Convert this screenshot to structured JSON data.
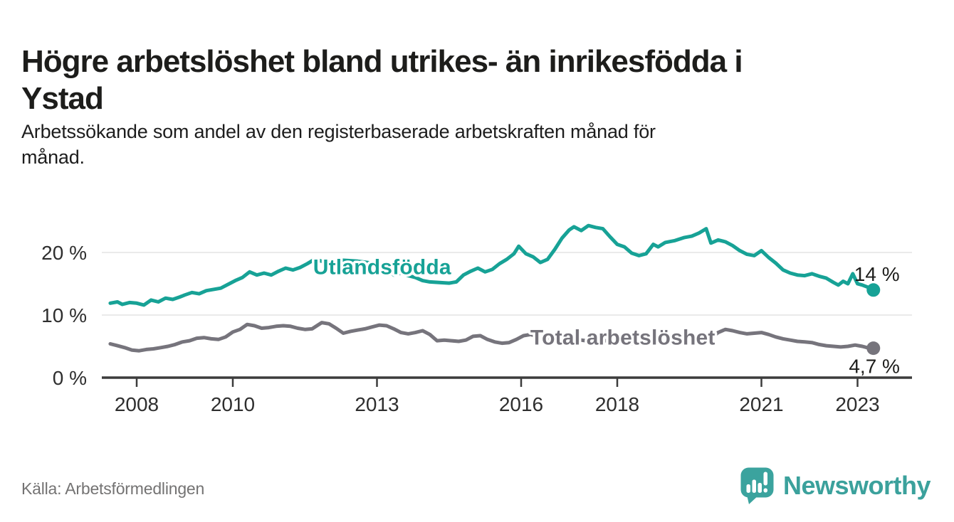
{
  "header": {
    "title_lines": [
      "Högre arbetslöshet bland utrikes- än inrikesfödda i",
      "Ystad"
    ],
    "subtitle_lines": [
      "Arbetssökande som andel av den registerbaserade arbetskraften månad för",
      "månad."
    ]
  },
  "chart_data": {
    "type": "line",
    "x_unit": "decimal_year",
    "xlim": [
      2007.45,
      2023.6
    ],
    "ylim": [
      0,
      25
    ],
    "grid": "horizontal",
    "legend_position": "inline-labels",
    "x_ticks": [
      {
        "x": 2008,
        "label": "2008"
      },
      {
        "x": 2010,
        "label": "2010"
      },
      {
        "x": 2013,
        "label": "2013"
      },
      {
        "x": 2016,
        "label": "2016"
      },
      {
        "x": 2018,
        "label": "2018"
      },
      {
        "x": 2021,
        "label": "2021"
      },
      {
        "x": 2023,
        "label": "2023"
      }
    ],
    "y_ticks": [
      {
        "v": 0,
        "label": "0 %"
      },
      {
        "v": 10,
        "label": "10 %"
      },
      {
        "v": 20,
        "label": "20 %"
      }
    ],
    "series": [
      {
        "name": "Utlandsfödda",
        "color": "#17a296",
        "end_dot": true,
        "end_value_label": "14 %",
        "points": [
          [
            2007.45,
            11.9
          ],
          [
            2007.6,
            12.1
          ],
          [
            2007.7,
            11.7
          ],
          [
            2007.85,
            12.0
          ],
          [
            2008.0,
            11.9
          ],
          [
            2008.15,
            11.6
          ],
          [
            2008.3,
            12.4
          ],
          [
            2008.45,
            12.1
          ],
          [
            2008.6,
            12.7
          ],
          [
            2008.75,
            12.5
          ],
          [
            2008.9,
            12.9
          ],
          [
            2009.0,
            13.2
          ],
          [
            2009.15,
            13.6
          ],
          [
            2009.3,
            13.4
          ],
          [
            2009.45,
            13.9
          ],
          [
            2009.6,
            14.1
          ],
          [
            2009.75,
            14.3
          ],
          [
            2009.9,
            14.9
          ],
          [
            2010.05,
            15.5
          ],
          [
            2010.2,
            16.0
          ],
          [
            2010.35,
            16.9
          ],
          [
            2010.5,
            16.4
          ],
          [
            2010.65,
            16.7
          ],
          [
            2010.8,
            16.4
          ],
          [
            2010.95,
            17.0
          ],
          [
            2011.1,
            17.5
          ],
          [
            2011.25,
            17.2
          ],
          [
            2011.4,
            17.6
          ],
          [
            2011.55,
            18.2
          ],
          [
            2011.7,
            18.9
          ],
          [
            2011.85,
            18.6
          ],
          [
            2012.0,
            18.7
          ],
          [
            2012.2,
            18.8
          ],
          [
            2012.4,
            18.7
          ],
          [
            2012.6,
            18.6
          ],
          [
            2012.8,
            18.4
          ],
          [
            2013.0,
            18.1
          ],
          [
            2013.2,
            17.8
          ],
          [
            2013.35,
            16.4
          ],
          [
            2013.5,
            16.7
          ],
          [
            2013.65,
            16.3
          ],
          [
            2013.8,
            16.0
          ],
          [
            2013.95,
            15.5
          ],
          [
            2014.1,
            15.3
          ],
          [
            2014.3,
            15.2
          ],
          [
            2014.5,
            15.1
          ],
          [
            2014.65,
            15.3
          ],
          [
            2014.8,
            16.4
          ],
          [
            2014.95,
            17.0
          ],
          [
            2015.1,
            17.5
          ],
          [
            2015.25,
            16.9
          ],
          [
            2015.4,
            17.3
          ],
          [
            2015.55,
            18.2
          ],
          [
            2015.7,
            18.9
          ],
          [
            2015.85,
            19.8
          ],
          [
            2015.95,
            21.0
          ],
          [
            2016.1,
            19.8
          ],
          [
            2016.25,
            19.3
          ],
          [
            2016.4,
            18.4
          ],
          [
            2016.55,
            18.9
          ],
          [
            2016.7,
            20.5
          ],
          [
            2016.85,
            22.3
          ],
          [
            2017.0,
            23.6
          ],
          [
            2017.1,
            24.1
          ],
          [
            2017.25,
            23.5
          ],
          [
            2017.4,
            24.3
          ],
          [
            2017.55,
            24.0
          ],
          [
            2017.7,
            23.8
          ],
          [
            2017.85,
            22.5
          ],
          [
            2018.0,
            21.3
          ],
          [
            2018.15,
            20.9
          ],
          [
            2018.3,
            19.9
          ],
          [
            2018.45,
            19.5
          ],
          [
            2018.6,
            19.8
          ],
          [
            2018.75,
            21.3
          ],
          [
            2018.85,
            20.9
          ],
          [
            2019.0,
            21.6
          ],
          [
            2019.2,
            21.9
          ],
          [
            2019.4,
            22.4
          ],
          [
            2019.55,
            22.6
          ],
          [
            2019.7,
            23.1
          ],
          [
            2019.85,
            23.8
          ],
          [
            2019.95,
            21.5
          ],
          [
            2020.1,
            22.0
          ],
          [
            2020.25,
            21.7
          ],
          [
            2020.4,
            21.1
          ],
          [
            2020.55,
            20.3
          ],
          [
            2020.7,
            19.7
          ],
          [
            2020.85,
            19.5
          ],
          [
            2021.0,
            20.3
          ],
          [
            2021.15,
            19.2
          ],
          [
            2021.3,
            18.3
          ],
          [
            2021.45,
            17.2
          ],
          [
            2021.6,
            16.7
          ],
          [
            2021.75,
            16.4
          ],
          [
            2021.9,
            16.3
          ],
          [
            2022.05,
            16.6
          ],
          [
            2022.2,
            16.2
          ],
          [
            2022.35,
            15.9
          ],
          [
            2022.5,
            15.2
          ],
          [
            2022.6,
            14.8
          ],
          [
            2022.7,
            15.4
          ],
          [
            2022.8,
            15.0
          ],
          [
            2022.9,
            16.6
          ],
          [
            2023.0,
            15.0
          ],
          [
            2023.1,
            14.8
          ],
          [
            2023.2,
            14.5
          ],
          [
            2023.33,
            14.0
          ]
        ]
      },
      {
        "name": "Total arbetslöshet",
        "color": "#76747c",
        "end_dot": true,
        "end_value_label": "4,7 %",
        "points": [
          [
            2007.45,
            5.4
          ],
          [
            2007.6,
            5.1
          ],
          [
            2007.75,
            4.8
          ],
          [
            2007.9,
            4.4
          ],
          [
            2008.05,
            4.3
          ],
          [
            2008.2,
            4.5
          ],
          [
            2008.35,
            4.6
          ],
          [
            2008.5,
            4.8
          ],
          [
            2008.65,
            5.0
          ],
          [
            2008.8,
            5.3
          ],
          [
            2008.95,
            5.7
          ],
          [
            2009.1,
            5.9
          ],
          [
            2009.25,
            6.3
          ],
          [
            2009.4,
            6.4
          ],
          [
            2009.55,
            6.2
          ],
          [
            2009.7,
            6.1
          ],
          [
            2009.85,
            6.5
          ],
          [
            2010.0,
            7.3
          ],
          [
            2010.15,
            7.7
          ],
          [
            2010.3,
            8.5
          ],
          [
            2010.45,
            8.3
          ],
          [
            2010.6,
            7.9
          ],
          [
            2010.75,
            8.0
          ],
          [
            2010.9,
            8.2
          ],
          [
            2011.05,
            8.3
          ],
          [
            2011.2,
            8.2
          ],
          [
            2011.35,
            7.9
          ],
          [
            2011.5,
            7.7
          ],
          [
            2011.65,
            7.8
          ],
          [
            2011.85,
            8.8
          ],
          [
            2012.0,
            8.6
          ],
          [
            2012.15,
            7.9
          ],
          [
            2012.3,
            7.1
          ],
          [
            2012.45,
            7.4
          ],
          [
            2012.6,
            7.6
          ],
          [
            2012.75,
            7.8
          ],
          [
            2012.9,
            8.1
          ],
          [
            2013.05,
            8.4
          ],
          [
            2013.2,
            8.3
          ],
          [
            2013.35,
            7.8
          ],
          [
            2013.5,
            7.2
          ],
          [
            2013.65,
            7.0
          ],
          [
            2013.8,
            7.2
          ],
          [
            2013.95,
            7.5
          ],
          [
            2014.1,
            6.9
          ],
          [
            2014.25,
            5.9
          ],
          [
            2014.4,
            6.0
          ],
          [
            2014.55,
            5.9
          ],
          [
            2014.7,
            5.8
          ],
          [
            2014.85,
            6.0
          ],
          [
            2015.0,
            6.6
          ],
          [
            2015.15,
            6.7
          ],
          [
            2015.3,
            6.1
          ],
          [
            2015.45,
            5.7
          ],
          [
            2015.6,
            5.5
          ],
          [
            2015.75,
            5.6
          ],
          [
            2015.9,
            6.1
          ],
          [
            2016.05,
            6.7
          ],
          [
            2016.2,
            6.9
          ],
          [
            2016.35,
            6.5
          ],
          [
            2016.5,
            6.2
          ],
          [
            2016.65,
            6.0
          ],
          [
            2016.8,
            6.2
          ],
          [
            2016.95,
            6.4
          ],
          [
            2017.15,
            6.1
          ],
          [
            2017.35,
            5.9
          ],
          [
            2017.55,
            5.8
          ],
          [
            2017.75,
            5.9
          ],
          [
            2017.95,
            6.0
          ],
          [
            2018.15,
            5.7
          ],
          [
            2018.35,
            5.4
          ],
          [
            2018.55,
            5.4
          ],
          [
            2018.75,
            5.5
          ],
          [
            2018.95,
            5.6
          ],
          [
            2019.15,
            5.5
          ],
          [
            2019.35,
            5.6
          ],
          [
            2019.55,
            5.7
          ],
          [
            2019.75,
            5.9
          ],
          [
            2019.95,
            6.3
          ],
          [
            2020.1,
            7.2
          ],
          [
            2020.25,
            7.7
          ],
          [
            2020.4,
            7.5
          ],
          [
            2020.55,
            7.2
          ],
          [
            2020.7,
            7.0
          ],
          [
            2020.85,
            7.1
          ],
          [
            2021.0,
            7.2
          ],
          [
            2021.15,
            6.9
          ],
          [
            2021.3,
            6.5
          ],
          [
            2021.45,
            6.2
          ],
          [
            2021.6,
            6.0
          ],
          [
            2021.75,
            5.8
          ],
          [
            2021.9,
            5.7
          ],
          [
            2022.05,
            5.6
          ],
          [
            2022.2,
            5.3
          ],
          [
            2022.35,
            5.1
          ],
          [
            2022.5,
            5.0
          ],
          [
            2022.65,
            4.9
          ],
          [
            2022.8,
            5.0
          ],
          [
            2022.95,
            5.2
          ],
          [
            2023.1,
            5.0
          ],
          [
            2023.2,
            4.8
          ],
          [
            2023.33,
            4.7
          ]
        ]
      }
    ],
    "annotations": [
      {
        "id": "series-label-utlandsfodda",
        "text": "Utlandsfödda",
        "x": 2011.67,
        "y": 16.55,
        "color": "#17a296",
        "bold": true,
        "halo": true,
        "size": 30
      },
      {
        "id": "series-label-total",
        "text": "Total arbetslöshet",
        "x": 2016.19,
        "y": 5.3,
        "color": "#76747c",
        "bold": true,
        "halo": true,
        "size": 30
      },
      {
        "id": "end-value-utlandsfodda",
        "text": "14 %",
        "x": 2022.93,
        "y": 15.45,
        "color": "#1d1d1b",
        "bold": false,
        "halo": false,
        "size": 28
      },
      {
        "id": "end-value-total",
        "text": "4,7 %",
        "x": 2022.82,
        "y": 0.75,
        "color": "#1d1d1b",
        "bold": false,
        "halo": false,
        "size": 28
      }
    ]
  },
  "footer": {
    "source": "Källa: Arbetsförmedlingen",
    "logo_text": "Newsworthy"
  },
  "colors": {
    "accent_teal": "#17a296",
    "line_gray": "#76747c",
    "axis_dark": "#3c3c3c",
    "gridline": "#e4e4e4",
    "text_dark": "#1d1d1b",
    "text_muted": "#747373",
    "logo_teal": "#3ba19c"
  }
}
